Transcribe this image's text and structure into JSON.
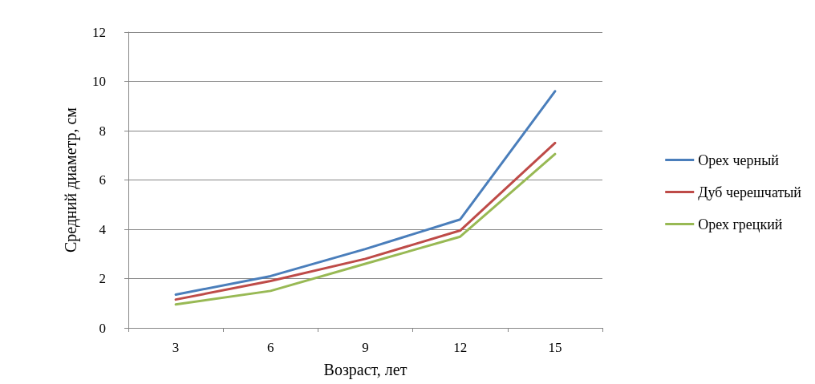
{
  "chart_data": {
    "type": "line",
    "xlabel": "Возраст, лет",
    "ylabel": "Средний диаметр, см",
    "categories": [
      "3",
      "6",
      "9",
      "12",
      "15"
    ],
    "series": [
      {
        "name": "Орех черный",
        "color": "#4a7ebb",
        "values": [
          1.35,
          2.1,
          3.2,
          4.4,
          9.6
        ]
      },
      {
        "name": "Дуб черешчатый",
        "color": "#be4b48",
        "values": [
          1.15,
          1.9,
          2.8,
          3.95,
          7.5
        ]
      },
      {
        "name": "Орех грецкий",
        "color": "#98b954",
        "values": [
          0.95,
          1.5,
          2.6,
          3.7,
          7.05
        ]
      }
    ],
    "ylim": [
      0,
      12
    ],
    "yticks": [
      0,
      2,
      4,
      6,
      8,
      10,
      12
    ],
    "grid": "y",
    "legend": "right",
    "marker": "none",
    "line_style": "solid"
  }
}
